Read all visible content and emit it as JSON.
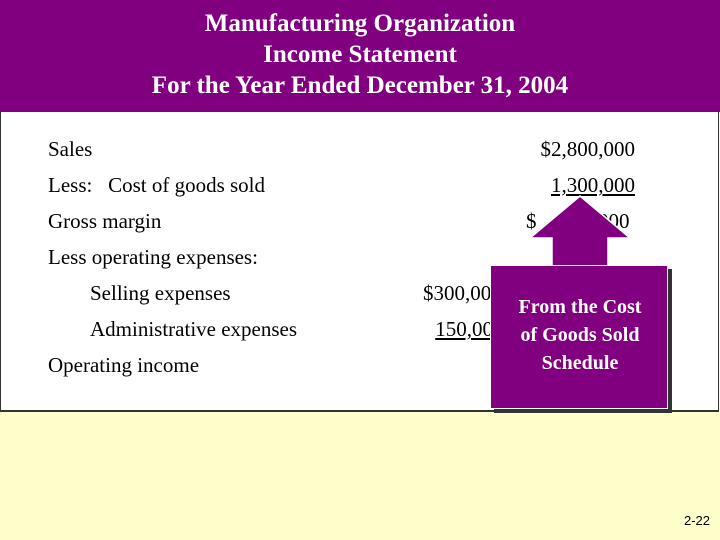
{
  "header": {
    "line1": "Manufacturing Organization",
    "line2": "Income Statement",
    "line3": "For the Year Ended December 31, 2004"
  },
  "statement": {
    "sales_label": "Sales",
    "sales_value": "$2,800,000",
    "cogs_label": "Less:   Cost of goods sold",
    "cogs_value": "1,300,000",
    "gross_label": "Gross margin",
    "gross_value_start": "$",
    "gross_value_end": "000",
    "opex_label": "Less operating expenses:",
    "selling_label": "Selling expenses",
    "selling_value": "$300,00",
    "admin_label": "Administrative expenses",
    "admin_value": "150,00",
    "operating_label": "Operating income"
  },
  "callout": {
    "line1": "From the Cost",
    "line2": "of Goods Sold",
    "line3": "Schedule",
    "fill_color": "#800080"
  },
  "page_number": "2-22"
}
